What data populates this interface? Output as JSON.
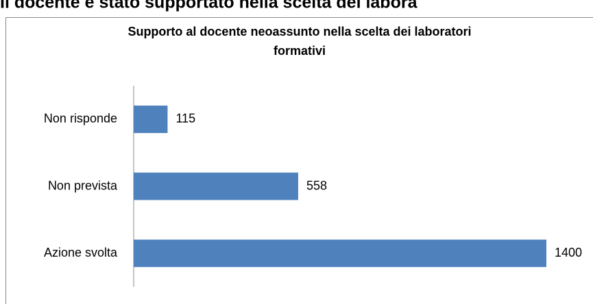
{
  "heading": "Il docente è stato supportato nella scelta dei labora",
  "chart_data": {
    "type": "bar",
    "orientation": "horizontal",
    "title": "Supporto al docente neoassunto nella scelta dei laboratori formativi",
    "categories": [
      "Non risponde",
      "Non prevista",
      "Azione svolta"
    ],
    "values": [
      115,
      558,
      1400
    ],
    "color": "#4f81bd"
  }
}
